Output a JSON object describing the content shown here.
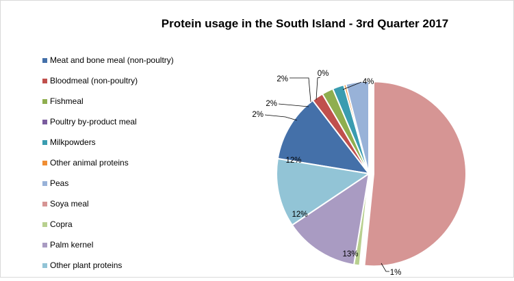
{
  "chart_data": {
    "type": "pie",
    "title": "Protein usage in the South Island - 3rd Quarter 2017",
    "legend_position": "left",
    "slices": [
      {
        "name": "Meat and bone meal (non-poultry)",
        "value": 12,
        "label": "12%",
        "color": "#4470A9"
      },
      {
        "name": "Bloodmeal (non-poultry)",
        "value": 2,
        "label": "2%",
        "color": "#C0504D"
      },
      {
        "name": "Fishmeal",
        "value": 2,
        "label": "2%",
        "color": "#8FAE4F"
      },
      {
        "name": "Poultry by-product meal",
        "value": 0,
        "label": "",
        "color": "#7A5C9E"
      },
      {
        "name": "Milkpowders",
        "value": 2,
        "label": "2%",
        "color": "#3A9CB0"
      },
      {
        "name": "Other animal proteins",
        "value": 0.4,
        "label": "0%",
        "color": "#F08E33"
      },
      {
        "name": "Peas",
        "value": 4,
        "label": "4%",
        "color": "#98B2D8"
      },
      {
        "name": "Soya meal",
        "value": 51.6,
        "label": "",
        "color": "#D69594"
      },
      {
        "name": "Copra",
        "value": 1,
        "label": "1%",
        "color": "#B8D08F"
      },
      {
        "name": "Palm kernel",
        "value": 13,
        "label": "13%",
        "color": "#A99BC2"
      },
      {
        "name": "Other plant proteins",
        "value": 12,
        "label": "12%",
        "color": "#92C4D6"
      }
    ]
  }
}
